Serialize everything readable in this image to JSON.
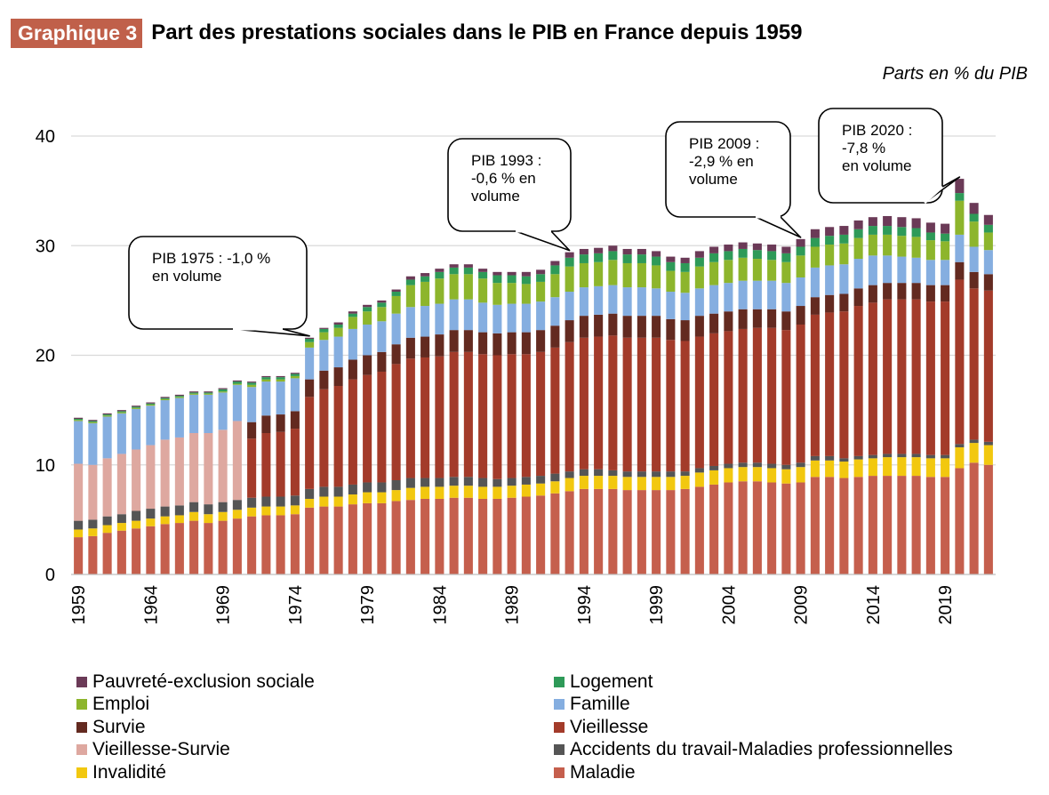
{
  "header": {
    "badge": "Graphique 3",
    "title": "Part des prestations sociales dans le PIB en France depuis 1959",
    "units": "Parts en % du PIB"
  },
  "chart_data": {
    "type": "bar",
    "stacked": true,
    "title": "Part des prestations sociales dans le PIB en France depuis 1959",
    "ylabel": "Parts en % du PIB",
    "ylim": [
      0,
      40
    ],
    "yticks": [
      0,
      10,
      20,
      30,
      40
    ],
    "grid": true,
    "x_start": 1959,
    "x_end": 2022,
    "x_tick_labels": [
      "1959",
      "1964",
      "1969",
      "1974",
      "1979",
      "1984",
      "1989",
      "1994",
      "1999",
      "2004",
      "2009",
      "2014",
      "2019"
    ],
    "series": [
      {
        "key": "maladie",
        "name": "Maladie",
        "color": "#c55f4d",
        "values": [
          3.4,
          3.5,
          3.8,
          4.0,
          4.2,
          4.4,
          4.6,
          4.7,
          4.9,
          4.7,
          4.9,
          5.1,
          5.3,
          5.4,
          5.4,
          5.5,
          6.1,
          6.2,
          6.2,
          6.4,
          6.5,
          6.5,
          6.7,
          6.8,
          6.9,
          6.9,
          7.0,
          7.0,
          6.9,
          6.9,
          7.0,
          7.1,
          7.2,
          7.4,
          7.6,
          7.8,
          7.8,
          7.8,
          7.7,
          7.7,
          7.7,
          7.7,
          7.8,
          8.0,
          8.2,
          8.4,
          8.5,
          8.5,
          8.4,
          8.3,
          8.4,
          8.9,
          8.9,
          8.8,
          8.9,
          9.0,
          9.0,
          9.0,
          9.0,
          8.9,
          8.9,
          9.7,
          10.2,
          10.0
        ]
      },
      {
        "key": "invalidite",
        "name": "Invalidité",
        "color": "#f2c80f",
        "values": [
          0.7,
          0.7,
          0.7,
          0.7,
          0.7,
          0.7,
          0.7,
          0.7,
          0.8,
          0.8,
          0.8,
          0.8,
          0.8,
          0.8,
          0.8,
          0.8,
          0.8,
          0.9,
          0.9,
          0.9,
          1.0,
          1.0,
          1.0,
          1.1,
          1.1,
          1.1,
          1.1,
          1.1,
          1.1,
          1.1,
          1.1,
          1.1,
          1.1,
          1.1,
          1.2,
          1.2,
          1.2,
          1.2,
          1.2,
          1.2,
          1.2,
          1.2,
          1.2,
          1.3,
          1.3,
          1.3,
          1.3,
          1.3,
          1.3,
          1.3,
          1.4,
          1.5,
          1.5,
          1.5,
          1.6,
          1.6,
          1.7,
          1.7,
          1.7,
          1.7,
          1.7,
          1.9,
          1.8,
          1.8
        ]
      },
      {
        "key": "accidents",
        "name": "Accidents du travail-Maladies professionnelles",
        "color": "#555555",
        "values": [
          0.8,
          0.8,
          0.8,
          0.8,
          0.9,
          0.9,
          0.9,
          0.9,
          0.9,
          0.9,
          0.9,
          0.9,
          0.9,
          0.9,
          0.9,
          0.9,
          0.9,
          0.9,
          0.9,
          0.9,
          0.9,
          0.9,
          0.9,
          0.9,
          0.8,
          0.8,
          0.8,
          0.8,
          0.8,
          0.7,
          0.7,
          0.7,
          0.7,
          0.7,
          0.6,
          0.6,
          0.6,
          0.5,
          0.5,
          0.5,
          0.5,
          0.5,
          0.4,
          0.4,
          0.4,
          0.4,
          0.4,
          0.4,
          0.4,
          0.4,
          0.4,
          0.4,
          0.4,
          0.3,
          0.3,
          0.3,
          0.3,
          0.3,
          0.3,
          0.3,
          0.3,
          0.3,
          0.3,
          0.3
        ]
      },
      {
        "key": "vieillesse_survie",
        "name": "Vieillesse-Survie",
        "color": "#dea8a0",
        "values": [
          5.2,
          5.0,
          5.3,
          5.5,
          5.6,
          5.8,
          6.1,
          6.2,
          6.3,
          6.5,
          6.6,
          7.2,
          0,
          0,
          0,
          0,
          0,
          0,
          0,
          0,
          0,
          0,
          0,
          0,
          0,
          0,
          0,
          0,
          0,
          0,
          0,
          0,
          0,
          0,
          0,
          0,
          0,
          0,
          0,
          0,
          0,
          0,
          0,
          0,
          0,
          0,
          0,
          0,
          0,
          0,
          0,
          0,
          0,
          0,
          0,
          0,
          0,
          0,
          0,
          0,
          0,
          0,
          0,
          0
        ]
      },
      {
        "key": "vieillesse",
        "name": "Vieillesse",
        "color": "#a33b2a",
        "values": [
          0,
          0,
          0,
          0,
          0,
          0,
          0,
          0,
          0,
          0,
          0,
          0,
          5.4,
          5.8,
          5.9,
          6.1,
          8.4,
          8.9,
          9.2,
          9.6,
          9.8,
          10.1,
          10.6,
          10.9,
          11.0,
          11.1,
          11.4,
          11.4,
          11.3,
          11.3,
          11.3,
          11.2,
          11.3,
          11.5,
          11.8,
          12.0,
          12.1,
          12.3,
          12.2,
          12.2,
          12.2,
          12.0,
          11.9,
          12.0,
          12.1,
          12.1,
          12.2,
          12.3,
          12.4,
          12.3,
          12.6,
          12.9,
          13.1,
          13.4,
          13.7,
          13.9,
          14.1,
          14.1,
          14.1,
          14.0,
          14.0,
          15.0,
          13.8,
          13.8
        ]
      },
      {
        "key": "survie",
        "name": "Survie",
        "color": "#632a20",
        "values": [
          0,
          0,
          0,
          0,
          0,
          0,
          0,
          0,
          0,
          0,
          0,
          0,
          1.5,
          1.6,
          1.6,
          1.6,
          1.6,
          1.7,
          1.7,
          1.8,
          1.8,
          1.8,
          1.8,
          1.9,
          1.9,
          2.0,
          2.0,
          2.0,
          2.0,
          2.0,
          2.0,
          2.0,
          2.0,
          2.0,
          2.0,
          2.0,
          2.0,
          2.0,
          2.0,
          2.0,
          2.0,
          1.9,
          1.9,
          1.9,
          1.8,
          1.8,
          1.8,
          1.7,
          1.7,
          1.7,
          1.7,
          1.6,
          1.6,
          1.6,
          1.6,
          1.6,
          1.5,
          1.5,
          1.5,
          1.5,
          1.5,
          1.6,
          1.5,
          1.5
        ]
      },
      {
        "key": "famille",
        "name": "Famille",
        "color": "#85aee0",
        "values": [
          3.9,
          3.8,
          3.8,
          3.7,
          3.7,
          3.6,
          3.6,
          3.6,
          3.5,
          3.5,
          3.4,
          3.3,
          3.2,
          3.1,
          3.0,
          3.0,
          2.9,
          2.8,
          2.8,
          2.8,
          2.8,
          2.8,
          2.8,
          2.8,
          2.8,
          2.8,
          2.8,
          2.8,
          2.7,
          2.6,
          2.6,
          2.6,
          2.6,
          2.6,
          2.6,
          2.6,
          2.6,
          2.6,
          2.6,
          2.6,
          2.5,
          2.5,
          2.5,
          2.5,
          2.6,
          2.6,
          2.6,
          2.6,
          2.6,
          2.6,
          2.6,
          2.7,
          2.7,
          2.7,
          2.7,
          2.7,
          2.5,
          2.4,
          2.3,
          2.3,
          2.3,
          2.5,
          2.3,
          2.2
        ]
      },
      {
        "key": "emploi",
        "name": "Emploi",
        "color": "#8db52c",
        "values": [
          0.1,
          0.1,
          0.1,
          0.1,
          0.1,
          0.1,
          0.1,
          0.1,
          0.1,
          0.1,
          0.1,
          0.1,
          0.2,
          0.2,
          0.2,
          0.2,
          0.5,
          0.7,
          0.8,
          1.1,
          1.2,
          1.3,
          1.6,
          2.0,
          2.2,
          2.3,
          2.3,
          2.3,
          2.2,
          2.0,
          1.9,
          1.8,
          1.8,
          2.1,
          2.3,
          2.2,
          2.2,
          2.3,
          2.2,
          2.2,
          2.1,
          1.9,
          1.9,
          2.0,
          2.1,
          2.1,
          2.1,
          2.0,
          1.9,
          1.9,
          2.0,
          1.9,
          1.9,
          1.9,
          1.9,
          1.9,
          1.9,
          1.9,
          1.9,
          1.8,
          1.7,
          3.1,
          2.3,
          1.6
        ]
      },
      {
        "key": "logement",
        "name": "Logement",
        "color": "#2e9a58",
        "values": [
          0.1,
          0.1,
          0.1,
          0.1,
          0.1,
          0.1,
          0.1,
          0.1,
          0.1,
          0.1,
          0.2,
          0.2,
          0.2,
          0.2,
          0.2,
          0.2,
          0.3,
          0.3,
          0.3,
          0.3,
          0.4,
          0.4,
          0.4,
          0.5,
          0.5,
          0.6,
          0.6,
          0.6,
          0.6,
          0.7,
          0.7,
          0.7,
          0.7,
          0.8,
          0.8,
          0.8,
          0.8,
          0.8,
          0.8,
          0.8,
          0.8,
          0.8,
          0.8,
          0.8,
          0.8,
          0.8,
          0.8,
          0.8,
          0.8,
          0.8,
          0.8,
          0.8,
          0.8,
          0.8,
          0.8,
          0.8,
          0.8,
          0.8,
          0.8,
          0.7,
          0.7,
          0.7,
          0.7,
          0.7
        ]
      },
      {
        "key": "pauvrete",
        "name": "Pauvreté-exclusion sociale",
        "color": "#6b3a57",
        "values": [
          0.1,
          0.1,
          0.1,
          0.1,
          0.1,
          0.1,
          0.1,
          0.1,
          0.1,
          0.1,
          0.1,
          0.1,
          0.1,
          0.1,
          0.1,
          0.1,
          0.1,
          0.1,
          0.2,
          0.2,
          0.2,
          0.2,
          0.2,
          0.3,
          0.3,
          0.3,
          0.3,
          0.3,
          0.3,
          0.3,
          0.3,
          0.4,
          0.4,
          0.4,
          0.5,
          0.5,
          0.5,
          0.5,
          0.5,
          0.5,
          0.5,
          0.5,
          0.5,
          0.6,
          0.6,
          0.6,
          0.6,
          0.6,
          0.6,
          0.6,
          0.7,
          0.8,
          0.8,
          0.8,
          0.8,
          0.8,
          0.9,
          0.9,
          0.9,
          0.9,
          0.9,
          1.3,
          1.0,
          0.9
        ]
      }
    ],
    "annotations": [
      {
        "text": [
          "PIB 1975 : -1,0 %",
          "en volume"
        ],
        "year": 1975
      },
      {
        "text": [
          "PIB 1993 :",
          "-0,6 % en",
          "volume"
        ],
        "year": 1993
      },
      {
        "text": [
          "PIB 2009 :",
          "-2,9 % en",
          "volume"
        ],
        "year": 2009
      },
      {
        "text": [
          "PIB 2020 :",
          "-7,8 %",
          "en volume"
        ],
        "year": 2020
      }
    ],
    "legend_order": [
      "pauvrete",
      "logement",
      "emploi",
      "famille",
      "survie",
      "vieillesse",
      "vieillesse_survie",
      "accidents",
      "invalidite",
      "maladie"
    ],
    "legend_placement": "bottom"
  }
}
